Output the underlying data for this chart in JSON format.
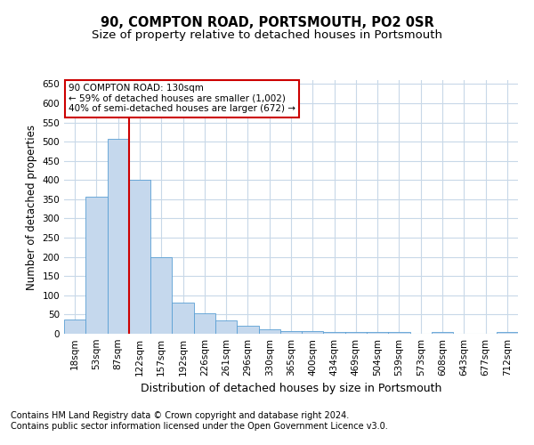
{
  "title": "90, COMPTON ROAD, PORTSMOUTH, PO2 0SR",
  "subtitle": "Size of property relative to detached houses in Portsmouth",
  "xlabel": "Distribution of detached houses by size in Portsmouth",
  "ylabel": "Number of detached properties",
  "footnote1": "Contains HM Land Registry data © Crown copyright and database right 2024.",
  "footnote2": "Contains public sector information licensed under the Open Government Licence v3.0.",
  "bar_labels": [
    "18sqm",
    "53sqm",
    "87sqm",
    "122sqm",
    "157sqm",
    "192sqm",
    "226sqm",
    "261sqm",
    "296sqm",
    "330sqm",
    "365sqm",
    "400sqm",
    "434sqm",
    "469sqm",
    "504sqm",
    "539sqm",
    "573sqm",
    "608sqm",
    "643sqm",
    "677sqm",
    "712sqm"
  ],
  "bar_values": [
    37,
    357,
    507,
    400,
    200,
    80,
    53,
    35,
    22,
    11,
    8,
    8,
    5,
    5,
    5,
    5,
    0,
    5,
    0,
    0,
    5
  ],
  "bar_color": "#c5d8ed",
  "bar_edge_color": "#5a9fd4",
  "vline_x_index": 3,
  "vline_color": "#cc0000",
  "annotation_text": "90 COMPTON ROAD: 130sqm\n← 59% of detached houses are smaller (1,002)\n40% of semi-detached houses are larger (672) →",
  "annotation_box_color": "#ffffff",
  "annotation_box_edge": "#cc0000",
  "ylim": [
    0,
    660
  ],
  "yticks": [
    0,
    50,
    100,
    150,
    200,
    250,
    300,
    350,
    400,
    450,
    500,
    550,
    600,
    650
  ],
  "background_color": "#ffffff",
  "grid_color": "#c8d8e8",
  "title_fontsize": 10.5,
  "subtitle_fontsize": 9.5,
  "ylabel_fontsize": 8.5,
  "xlabel_fontsize": 9,
  "tick_fontsize": 7.5,
  "annotation_fontsize": 7.5,
  "footnote_fontsize": 7
}
